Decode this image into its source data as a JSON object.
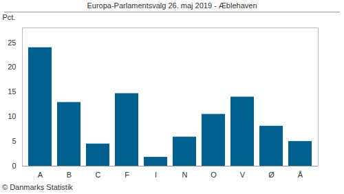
{
  "chart_data": {
    "type": "bar",
    "title": "Europa-Parlamentsvalg 26. maj 2019 - Æblehaven",
    "y_label": "Pct.",
    "caption": "© Danmarks Statistik",
    "categories": [
      "A",
      "B",
      "C",
      "F",
      "I",
      "N",
      "O",
      "V",
      "Ø",
      "Å"
    ],
    "values": [
      24.0,
      12.9,
      4.5,
      14.7,
      1.8,
      5.9,
      10.5,
      14.0,
      8.1,
      5.0
    ],
    "color": "#00608f",
    "ylim": [
      0,
      28
    ],
    "yticks": [
      0,
      5,
      10,
      15,
      20,
      25
    ],
    "grid": false
  }
}
